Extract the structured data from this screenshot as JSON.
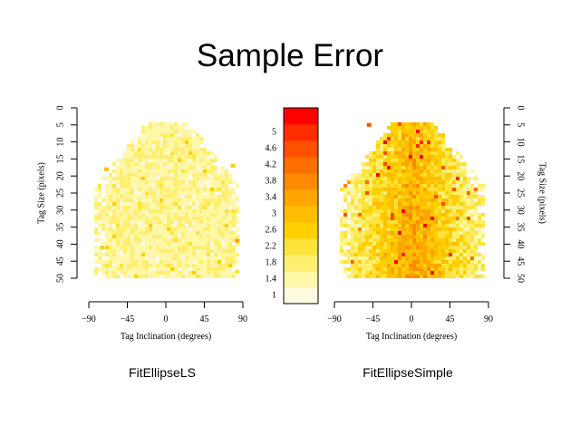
{
  "title": "Sample Error",
  "colors": {
    "scale": [
      "#fffae0",
      "#fff7a8",
      "#ffef70",
      "#ffe23a",
      "#ffd000",
      "#ffbd00",
      "#ffa500",
      "#ff8a00",
      "#ff6e00",
      "#ff4f00",
      "#ff2c00",
      "#ff0000"
    ],
    "background": "#ffffff"
  },
  "chart_data": [
    {
      "type": "heatmap",
      "caption": "FitEllipseLS",
      "xlabel": "Tag Inclination (degrees)",
      "ylabel": "Tag Size (pixels)",
      "xlim": [
        -90,
        90
      ],
      "ylim": [
        0,
        50
      ],
      "x_ticks": [
        "−90",
        "−45",
        "0",
        "45",
        "90"
      ],
      "y_ticks": [
        "0",
        "5",
        "10",
        "15",
        "20",
        "25",
        "30",
        "35",
        "40",
        "45",
        "50"
      ],
      "y_axis_side": "left",
      "value_range": [
        1,
        5.2
      ],
      "typical_value": 1.7,
      "noise": 0.35,
      "hotspot_strength": 0.3,
      "hotspots": [
        {
          "x": -70,
          "y": 18,
          "value": 3.2
        },
        {
          "x": -75,
          "y": 41,
          "value": 2.8
        },
        {
          "x": 83,
          "y": 39,
          "value": 3.6
        },
        {
          "x": 78,
          "y": 17,
          "value": 2.6
        },
        {
          "x": 83,
          "y": 48,
          "value": 2.4
        }
      ]
    },
    {
      "type": "heatmap",
      "caption": "FitEllipseSimple",
      "xlabel": "Tag Inclination (degrees)",
      "ylabel": "Tag Size (pixels)",
      "xlim": [
        -90,
        90
      ],
      "ylim": [
        0,
        50
      ],
      "x_ticks": [
        "−90",
        "−45",
        "0",
        "45",
        "90"
      ],
      "y_ticks": [
        "0",
        "5",
        "10",
        "15",
        "20",
        "25",
        "30",
        "35",
        "40",
        "45",
        "50"
      ],
      "y_axis_side": "right",
      "value_range": [
        1,
        5.2
      ],
      "typical_value": 2.6,
      "noise": 0.6,
      "hotspot_strength": 0.8,
      "hotspots": [
        {
          "x": -50,
          "y": 5,
          "value": 4.8
        },
        {
          "x": -15,
          "y": 41,
          "value": 3.8
        },
        {
          "x": 0,
          "y": 49,
          "value": 3.8
        },
        {
          "x": 10,
          "y": 47,
          "value": 3.6
        },
        {
          "x": -40,
          "y": 47,
          "value": 3.4
        }
      ]
    }
  ],
  "colorbar": {
    "labels": [
      "1",
      "1.4",
      "1.8",
      "2.2",
      "2.6",
      "3",
      "3.4",
      "3.8",
      "4.2",
      "4.6",
      "5"
    ],
    "min": 1,
    "step": 0.4,
    "bins": 12
  }
}
